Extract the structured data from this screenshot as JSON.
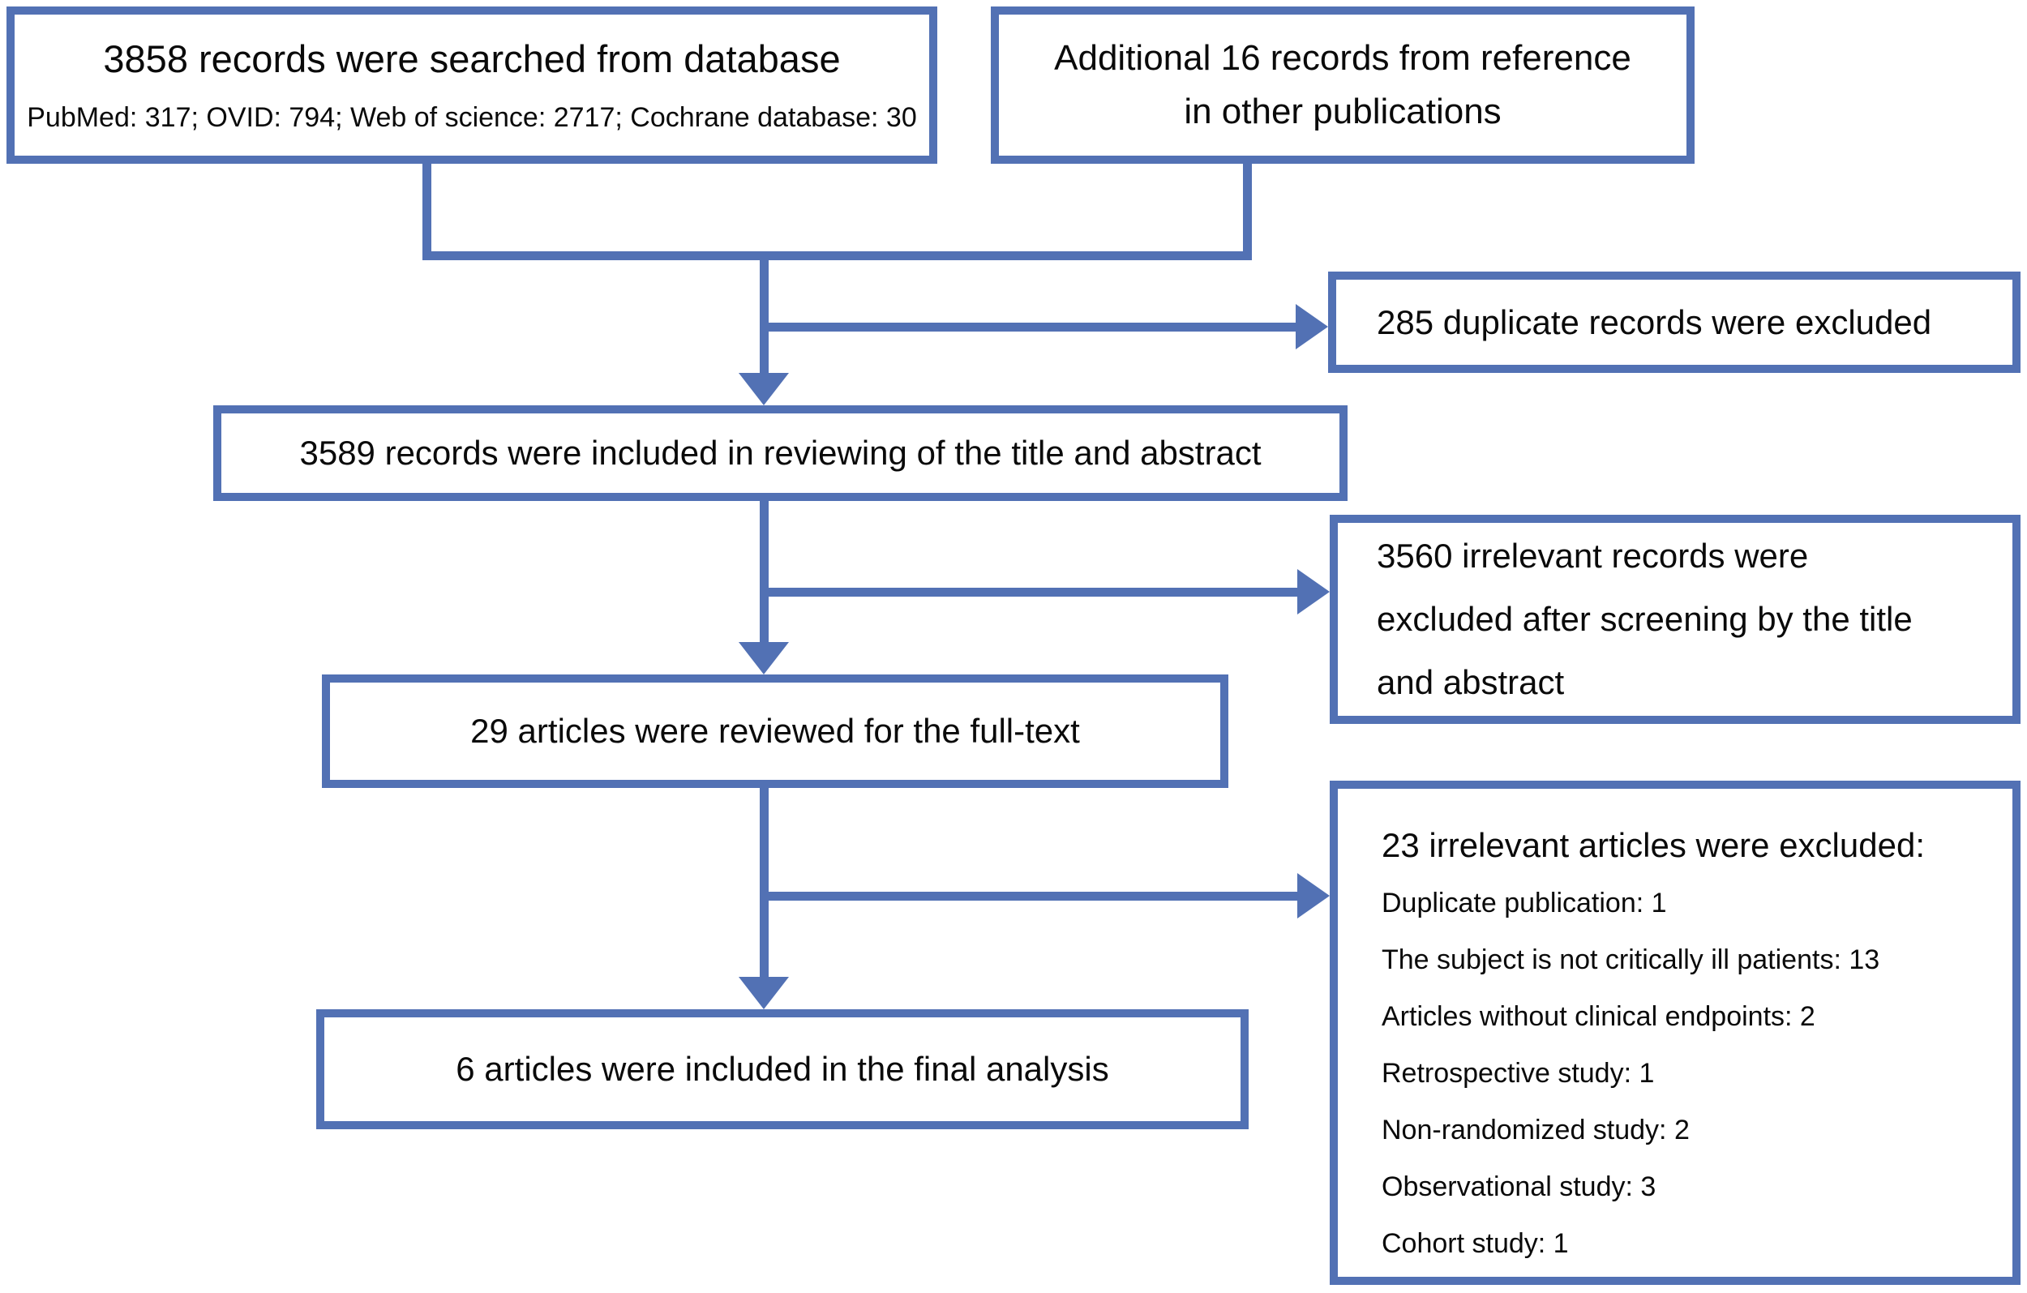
{
  "accent_color": "#5271b4",
  "flow": {
    "searched": {
      "title": "3858 records were searched from database",
      "subtitle": "PubMed: 317; OVID: 794; Web of science: 2717; Cochrane database: 30"
    },
    "additional": {
      "lines": [
        "Additional 16 records from reference",
        "in other publications"
      ]
    },
    "duplicates": {
      "text": "285 duplicate records were excluded"
    },
    "title_abstract_review": {
      "text": "3589 records were included in reviewing of the title and abstract"
    },
    "irrelevant_records": {
      "lines": [
        "3560 irrelevant records were",
        "excluded after screening by the title",
        "and abstract"
      ]
    },
    "fulltext_review": {
      "text": "29 articles were reviewed for the full-text"
    },
    "irrelevant_articles": {
      "heading": "23 irrelevant articles were excluded:",
      "items": [
        "Duplicate publication: 1",
        "The subject is not critically ill patients: 13",
        "Articles without clinical endpoints: 2",
        "Retrospective study: 1",
        "Non-randomized study: 2",
        "Observational study: 3",
        "Cohort study: 1"
      ]
    },
    "final_analysis": {
      "text": "6 articles were included in the final analysis"
    }
  }
}
